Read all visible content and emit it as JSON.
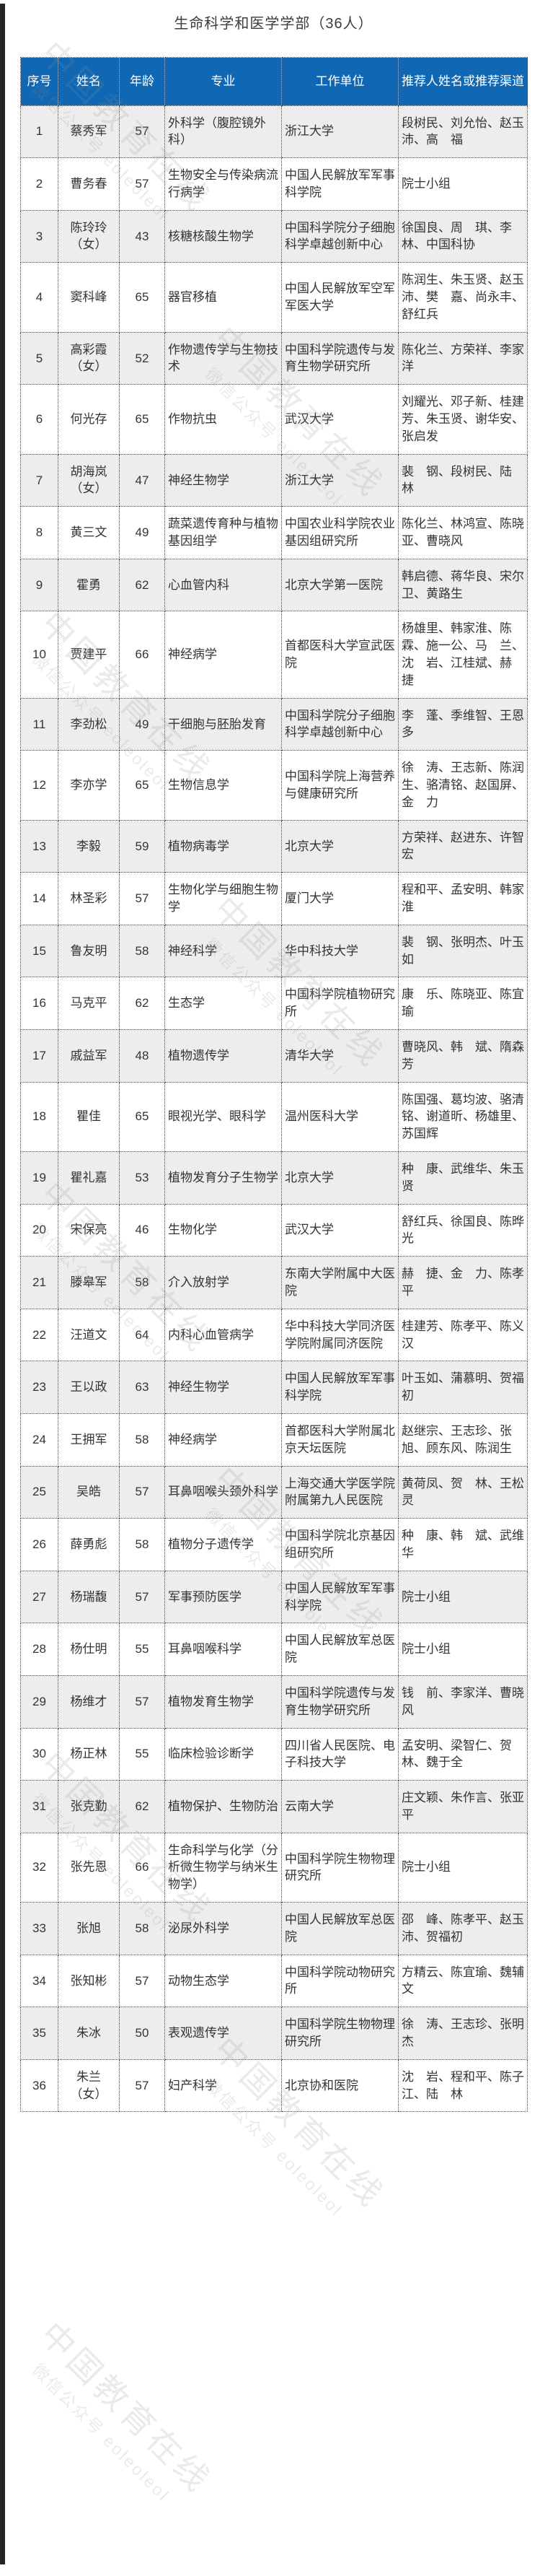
{
  "page": {
    "title": "生命科学和医学学部（36人）"
  },
  "colors": {
    "header_bg": "#1068b4",
    "header_text": "#ffffff",
    "stripe_row_bg": "#ededed",
    "body_text": "#333333",
    "left_strip": "#262626"
  },
  "watermark": {
    "line_big": "中国教育在线",
    "line_small": "微信公众号 eoleoleol"
  },
  "table": {
    "headers": [
      "序号",
      "姓名",
      "年龄",
      "专业",
      "工作单位",
      "推荐人姓名或推荐渠道"
    ],
    "rows": [
      {
        "no": "1",
        "name": "蔡秀军",
        "age": "57",
        "major": "外科学（腹腔镜外科）",
        "unit": "浙江大学",
        "recommenders": "段树民、刘允怡、赵玉沛、高　福"
      },
      {
        "no": "2",
        "name": "曹务春",
        "age": "57",
        "major": "生物安全与传染病流行病学",
        "unit": "中国人民解放军军事科学院",
        "recommenders": "院士小组"
      },
      {
        "no": "3",
        "name": "陈玲玲\n（女）",
        "age": "43",
        "major": "核糖核酸生物学",
        "unit": "中国科学院分子细胞科学卓越创新中心",
        "recommenders": "徐国良、周　琪、李　林、中国科协"
      },
      {
        "no": "4",
        "name": "窦科峰",
        "age": "65",
        "major": "器官移植",
        "unit": "中国人民解放军空军军医大学",
        "recommenders": "陈润生、朱玉贤、赵玉沛、樊　嘉、尚永丰、舒红兵"
      },
      {
        "no": "5",
        "name": "高彩霞\n（女）",
        "age": "52",
        "major": "作物遗传学与生物技术",
        "unit": "中国科学院遗传与发育生物学研究所",
        "recommenders": "陈化兰、方荣祥、李家洋"
      },
      {
        "no": "6",
        "name": "何光存",
        "age": "65",
        "major": "作物抗虫",
        "unit": "武汉大学",
        "recommenders": "刘耀光、邓子新、桂建芳、朱玉贤、谢华安、张启发"
      },
      {
        "no": "7",
        "name": "胡海岚\n（女）",
        "age": "47",
        "major": "神经生物学",
        "unit": "浙江大学",
        "recommenders": "裴　钢、段树民、陆　林"
      },
      {
        "no": "8",
        "name": "黄三文",
        "age": "49",
        "major": "蔬菜遗传育种与植物基因组学",
        "unit": "中国农业科学院农业基因组研究所",
        "recommenders": "陈化兰、林鸿宣、陈晓亚、曹晓风"
      },
      {
        "no": "9",
        "name": "霍勇",
        "age": "62",
        "major": "心血管内科",
        "unit": "北京大学第一医院",
        "recommenders": "韩启德、蒋华良、宋尔卫、黄路生"
      },
      {
        "no": "10",
        "name": "贾建平",
        "age": "66",
        "major": "神经病学",
        "unit": "首都医科大学宣武医院",
        "recommenders": "杨雄里、韩家淮、陈　霖、施一公、马　兰、沈　岩、江桂斌、赫　捷"
      },
      {
        "no": "11",
        "name": "李劲松",
        "age": "49",
        "major": "干细胞与胚胎发育",
        "unit": "中国科学院分子细胞科学卓越创新中心",
        "recommenders": "李　蓬、季维智、王恩多"
      },
      {
        "no": "12",
        "name": "李亦学",
        "age": "65",
        "major": "生物信息学",
        "unit": "中国科学院上海营养与健康研究所",
        "recommenders": "徐　涛、王志新、陈润生、骆清铭、赵国屏、金　力"
      },
      {
        "no": "13",
        "name": "李毅",
        "age": "59",
        "major": "植物病毒学",
        "unit": "北京大学",
        "recommenders": "方荣祥、赵进东、许智宏"
      },
      {
        "no": "14",
        "name": "林圣彩",
        "age": "57",
        "major": "生物化学与细胞生物学",
        "unit": "厦门大学",
        "recommenders": "程和平、孟安明、韩家淮"
      },
      {
        "no": "15",
        "name": "鲁友明",
        "age": "58",
        "major": "神经科学",
        "unit": "华中科技大学",
        "recommenders": "裴　钢、张明杰、叶玉如"
      },
      {
        "no": "16",
        "name": "马克平",
        "age": "62",
        "major": "生态学",
        "unit": "中国科学院植物研究所",
        "recommenders": "康　乐、陈晓亚、陈宜瑜"
      },
      {
        "no": "17",
        "name": "戚益军",
        "age": "48",
        "major": "植物遗传学",
        "unit": "清华大学",
        "recommenders": "曹晓风、韩　斌、隋森芳"
      },
      {
        "no": "18",
        "name": "瞿佳",
        "age": "65",
        "major": "眼视光学、眼科学",
        "unit": "温州医科大学",
        "recommenders": "陈国强、葛均波、骆清铭、谢道昕、杨雄里、苏国辉"
      },
      {
        "no": "19",
        "name": "瞿礼嘉",
        "age": "53",
        "major": "植物发育分子生物学",
        "unit": "北京大学",
        "recommenders": "种　康、武维华、朱玉贤"
      },
      {
        "no": "20",
        "name": "宋保亮",
        "age": "46",
        "major": "生物化学",
        "unit": "武汉大学",
        "recommenders": "舒红兵、徐国良、陈晔光"
      },
      {
        "no": "21",
        "name": "滕皋军",
        "age": "58",
        "major": "介入放射学",
        "unit": "东南大学附属中大医院",
        "recommenders": "赫　捷、金　力、陈孝平"
      },
      {
        "no": "22",
        "name": "汪道文",
        "age": "64",
        "major": "内科心血管病学",
        "unit": "华中科技大学同济医学院附属同济医院",
        "recommenders": "桂建芳、陈孝平、陈义汉"
      },
      {
        "no": "23",
        "name": "王以政",
        "age": "63",
        "major": "神经生物学",
        "unit": "中国人民解放军军事科学院",
        "recommenders": "叶玉如、蒲慕明、贺福初"
      },
      {
        "no": "24",
        "name": "王拥军",
        "age": "58",
        "major": "神经病学",
        "unit": "首都医科大学附属北京天坛医院",
        "recommenders": "赵继宗、王志珍、张　旭、顾东风、陈润生"
      },
      {
        "no": "25",
        "name": "吴皓",
        "age": "57",
        "major": "耳鼻咽喉头颈外科学",
        "unit": "上海交通大学医学院附属第九人民医院",
        "recommenders": "黄荷凤、贺　林、王松灵"
      },
      {
        "no": "26",
        "name": "薛勇彪",
        "age": "58",
        "major": "植物分子遗传学",
        "unit": "中国科学院北京基因组研究所",
        "recommenders": "种　康、韩　斌、武维华"
      },
      {
        "no": "27",
        "name": "杨瑞馥",
        "age": "57",
        "major": "军事预防医学",
        "unit": "中国人民解放军军事科学院",
        "recommenders": "院士小组"
      },
      {
        "no": "28",
        "name": "杨仕明",
        "age": "55",
        "major": "耳鼻咽喉科学",
        "unit": "中国人民解放军总医院",
        "recommenders": "院士小组"
      },
      {
        "no": "29",
        "name": "杨维才",
        "age": "57",
        "major": "植物发育生物学",
        "unit": "中国科学院遗传与发育生物学研究所",
        "recommenders": "钱　前、李家洋、曹晓风"
      },
      {
        "no": "30",
        "name": "杨正林",
        "age": "55",
        "major": "临床检验诊断学",
        "unit": "四川省人民医院、电子科技大学",
        "recommenders": "孟安明、梁智仁、贺　林、魏于全"
      },
      {
        "no": "31",
        "name": "张克勤",
        "age": "62",
        "major": "植物保护、生物防治",
        "unit": "云南大学",
        "recommenders": "庄文颖、朱作言、张亚平"
      },
      {
        "no": "32",
        "name": "张先恩",
        "age": "66",
        "major": "生命科学与化学（分析微生物学与纳米生物学）",
        "unit": "中国科学院生物物理研究所",
        "recommenders": "院士小组"
      },
      {
        "no": "33",
        "name": "张旭",
        "age": "58",
        "major": "泌尿外科学",
        "unit": "中国人民解放军总医院",
        "recommenders": "邵　峰、陈孝平、赵玉沛、贺福初"
      },
      {
        "no": "34",
        "name": "张知彬",
        "age": "57",
        "major": "动物生态学",
        "unit": "中国科学院动物研究所",
        "recommenders": "方精云、陈宜瑜、魏辅文"
      },
      {
        "no": "35",
        "name": "朱冰",
        "age": "50",
        "major": "表观遗传学",
        "unit": "中国科学院生物物理研究所",
        "recommenders": "徐　涛、王志珍、张明杰"
      },
      {
        "no": "36",
        "name": "朱兰\n（女）",
        "age": "57",
        "major": "妇产科学",
        "unit": "北京协和医院",
        "recommenders": "沈　岩、程和平、陈子江、陆　林"
      }
    ]
  }
}
